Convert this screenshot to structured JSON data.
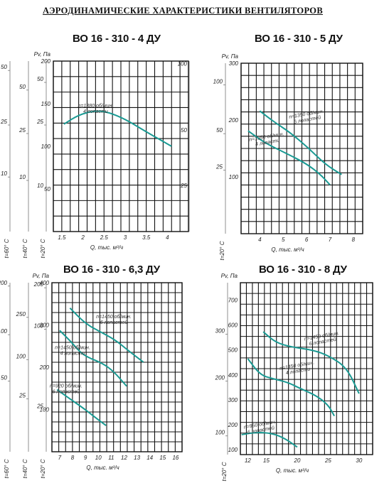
{
  "page_title": "АЭРОДИНАМИЧЕСКИЕ ХАРАКТЕРИСТИКИ ВЕНТИЛЯТОРОВ",
  "colors": {
    "curve": "#1a9a93",
    "grid": "#111111"
  },
  "chart_data": [
    {
      "type": "line",
      "title": "ВО 16 - 310 - 4 ДУ",
      "xlabel": "Q, тыс. м³/ч",
      "ylabel": "Pv, Па",
      "xlim": [
        1.3,
        4.5
      ],
      "ylim": [
        0,
        200
      ],
      "x_ticks": [
        "1.5",
        "2",
        "2.5",
        "3",
        "3.5",
        "4"
      ],
      "x_tick_values": [
        1.5,
        2,
        2.5,
        3,
        3.5,
        4
      ],
      "y_ticks": [
        "50",
        "100",
        "150",
        "200"
      ],
      "y_tick_values": [
        50,
        100,
        150,
        200
      ],
      "aux_axes": [
        {
          "label": "t=20° C",
          "ticks": [
            {
              "label": "10",
              "v": 50
            },
            {
              "label": "25",
              "v": 125
            },
            {
              "label": "50",
              "v": 175
            }
          ]
        },
        {
          "label": "t=40° C",
          "ticks": [
            {
              "label": "10",
              "v": 60
            },
            {
              "label": "25",
              "v": 115
            },
            {
              "label": "50",
              "v": 166
            }
          ]
        },
        {
          "label": "t=60° C",
          "ticks": [
            {
              "label": "10",
              "v": 64
            },
            {
              "label": "25",
              "v": 125
            },
            {
              "label": "50",
              "v": 189
            }
          ]
        }
      ],
      "right_axes": [
        {
          "ticks": [
            {
              "label": "25",
              "v": 50
            },
            {
              "label": "50",
              "v": 115
            },
            {
              "label": "100",
              "v": 193
            }
          ]
        }
      ],
      "series": [
        {
          "values": [
            [
              1.55,
              126
            ],
            [
              1.9,
              137
            ],
            [
              2.3,
              142
            ],
            [
              2.6,
              140
            ],
            [
              3.0,
              132
            ],
            [
              3.5,
              117
            ],
            [
              4.1,
              100
            ]
          ],
          "labels": [
            "n=1380 об/мин.",
            "4 лопасти"
          ]
        }
      ]
    },
    {
      "type": "line",
      "title": "ВО 16 - 310 - 5 ДУ",
      "xlabel": "Q, тыс. м³/ч",
      "ylabel": "Pv, Па",
      "xlim": [
        3.2,
        8.4
      ],
      "ylim": [
        0,
        300
      ],
      "x_ticks": [
        "4",
        "5",
        "6",
        "7",
        "8"
      ],
      "x_tick_values": [
        4,
        5,
        6,
        7,
        8
      ],
      "y_ticks": [
        "100",
        "200",
        "300"
      ],
      "y_tick_values": [
        100,
        200,
        300
      ],
      "aux_axes": [
        {
          "label": "t=20° C",
          "ticks": [
            {
              "label": "25",
              "v": 112
            },
            {
              "label": "50",
              "v": 176
            },
            {
              "label": "100",
              "v": 262
            }
          ]
        }
      ],
      "right_axes": [],
      "series": [
        {
          "values": [
            [
              4.0,
              216
            ],
            [
              4.6,
              197
            ],
            [
              5.3,
              178
            ],
            [
              6.1,
              150
            ],
            [
              6.8,
              122
            ],
            [
              7.5,
              104
            ]
          ],
          "labels": [
            "n=1350 об/мин.",
            "6 лопастей"
          ]
        },
        {
          "values": [
            [
              3.5,
              181
            ],
            [
              4.2,
              160
            ],
            [
              5.2,
              140
            ],
            [
              6.0,
              123
            ],
            [
              6.6,
              104
            ],
            [
              7.0,
              86
            ]
          ],
          "labels": [
            "n=1350 об/мин.",
            "4 лопасти"
          ]
        }
      ]
    },
    {
      "type": "line",
      "title": "ВО 16 - 310 - 6,3 ДУ",
      "xlabel": "Q, тыс. м³/ч",
      "ylabel": "Pv, Па",
      "xlim": [
        6.4,
        16.5
      ],
      "ylim": [
        0,
        400
      ],
      "x_ticks": [
        "7",
        "8",
        "9",
        "10",
        "11",
        "12",
        "13",
        "14",
        "15",
        "16"
      ],
      "x_tick_values": [
        7,
        8,
        9,
        10,
        11,
        12,
        13,
        14,
        15,
        16
      ],
      "y_ticks": [
        "100",
        "200",
        "300",
        "400"
      ],
      "y_tick_values": [
        100,
        200,
        300,
        400
      ],
      "aux_axes": [
        {
          "label": "t=20° C",
          "ticks": [
            {
              "label": "25",
              "v": 100
            },
            {
              "label": "100",
              "v": 290
            },
            {
              "label": "200",
              "v": 388
            }
          ]
        },
        {
          "label": "t=40° C",
          "ticks": [
            {
              "label": "25",
              "v": 125
            },
            {
              "label": "100",
              "v": 218
            },
            {
              "label": "250",
              "v": 318
            }
          ]
        },
        {
          "label": "t=60° C",
          "ticks": [
            {
              "label": "50",
              "v": 167
            },
            {
              "label": "100",
              "v": 277
            },
            {
              "label": "200",
              "v": 392
            }
          ]
        }
      ],
      "right_axes": [],
      "series": [
        {
          "values": [
            [
              7.8,
              340
            ],
            [
              9.0,
              303
            ],
            [
              10.2,
              283
            ],
            [
              11.3,
              265
            ],
            [
              12.3,
              240
            ],
            [
              13.5,
              212
            ]
          ],
          "labels": [
            "n=1450 об/мин.",
            "6 лопастей"
          ]
        },
        {
          "values": [
            [
              7.0,
              287
            ],
            [
              7.9,
              260
            ],
            [
              8.8,
              228
            ],
            [
              10.3,
              210
            ],
            [
              11.2,
              190
            ],
            [
              12.2,
              155
            ]
          ],
          "labels": [
            "n=1450 об/мин.",
            "4 лопасти"
          ]
        },
        {
          "values": [
            [
              6.8,
              147
            ],
            [
              7.8,
              125
            ],
            [
              8.8,
              104
            ],
            [
              9.6,
              85
            ],
            [
              10.6,
              62
            ]
          ],
          "labels": [
            "n=920 об/мин.",
            "6 лопастей"
          ]
        }
      ]
    },
    {
      "type": "line",
      "title": "ВО 16 - 310 - 8 ДУ",
      "xlabel": "Q, тыс. м³/ч",
      "ylabel": "Pv, Па",
      "xlim": [
        10.8,
        32.2
      ],
      "ylim": [
        80,
        770
      ],
      "x_ticks": [
        "12",
        "15",
        "20",
        "25",
        "30"
      ],
      "x_tick_values": [
        12,
        15,
        20,
        25,
        30
      ],
      "y_ticks": [
        "100",
        "200",
        "300",
        "400",
        "500",
        "600",
        "700"
      ],
      "y_tick_values": [
        100,
        200,
        300,
        400,
        500,
        600,
        700
      ],
      "aux_axes": [
        {
          "label": "t=20° C",
          "ticks": [
            {
              "label": "100",
              "v": 155
            },
            {
              "label": "200",
              "v": 375
            },
            {
              "label": "300",
              "v": 563
            }
          ]
        }
      ],
      "right_axes": [],
      "series": [
        {
          "values": [
            [
              14.5,
              573
            ],
            [
              16.5,
              530
            ],
            [
              19,
              512
            ],
            [
              22.5,
              500
            ],
            [
              25,
              478
            ],
            [
              28,
              430
            ],
            [
              30,
              325
            ]
          ],
          "labels": [
            "n=1450 об/мин.",
            "6 лопастей"
          ]
        },
        {
          "values": [
            [
              12,
              465
            ],
            [
              14,
              400
            ],
            [
              16,
              385
            ],
            [
              18.5,
              370
            ],
            [
              20.5,
              345
            ],
            [
              23,
              318
            ],
            [
              25,
              280
            ],
            [
              26,
              235
            ]
          ],
          "labels": [
            "n=1450 об/мин.",
            "4 лопасти"
          ]
        },
        {
          "values": [
            [
              11,
              160
            ],
            [
              13.5,
              170
            ],
            [
              16,
              165
            ],
            [
              18,
              145
            ],
            [
              20,
              110
            ]
          ],
          "labels": [
            "n=950 об/мин.",
            "6 лопастей"
          ]
        }
      ]
    }
  ]
}
